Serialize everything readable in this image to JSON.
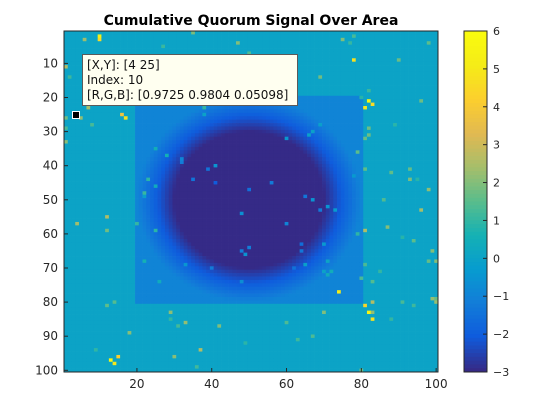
{
  "chart_data": {
    "type": "heatmap",
    "title": "Cumulative Quorum Signal Over Area",
    "xlabel": "",
    "ylabel": "",
    "grid_size": [
      100,
      100
    ],
    "xlim": [
      1,
      100
    ],
    "ylim": [
      1,
      100
    ],
    "y_direction": "reverse",
    "x_ticks": [
      20,
      40,
      60,
      80,
      100
    ],
    "y_ticks": [
      10,
      20,
      30,
      40,
      50,
      60,
      70,
      80,
      90,
      100
    ],
    "color_limits": [
      -3,
      6
    ],
    "colorbar_ticks": [
      6,
      5,
      4,
      3,
      2,
      1,
      0,
      -1,
      -2,
      -3
    ],
    "colormap": "parula",
    "background_value": 0.0,
    "square_region": {
      "x": [
        20,
        80
      ],
      "y": [
        20,
        80
      ],
      "value": -1.0
    },
    "disk_region": {
      "center": [
        50,
        50
      ],
      "radius": 20,
      "value": -3.0,
      "edge_blur": 10
    },
    "bright_clusters": [
      {
        "x": 82,
        "y": 21,
        "value": 5.8
      },
      {
        "x": 81,
        "y": 23,
        "value": 5.0
      },
      {
        "x": 83,
        "y": 22,
        "value": 4.6
      },
      {
        "x": 82,
        "y": 83,
        "value": 5.6
      },
      {
        "x": 83,
        "y": 85,
        "value": 4.8
      },
      {
        "x": 81,
        "y": 81,
        "value": 4.4
      },
      {
        "x": 13,
        "y": 97,
        "value": 5.7
      },
      {
        "x": 14,
        "y": 98,
        "value": 5.0
      },
      {
        "x": 15,
        "y": 96,
        "value": 4.2
      },
      {
        "x": 10,
        "y": 2,
        "value": 5.4
      },
      {
        "x": 10,
        "y": 3,
        "value": 4.6
      },
      {
        "x": 17,
        "y": 26,
        "value": 4.8
      },
      {
        "x": 16,
        "y": 25,
        "value": 3.8
      },
      {
        "x": 78,
        "y": 9,
        "value": 4.8
      },
      {
        "x": 74,
        "y": 77,
        "value": 5.2
      },
      {
        "x": 37,
        "y": 94,
        "value": 2.6
      }
    ],
    "datatip": {
      "point": [
        4,
        25
      ],
      "lines": [
        "[X,Y]: [4 25]",
        "Index: 10",
        "[R,G,B]: [0.9725 0.9804 0.05098]"
      ]
    }
  }
}
